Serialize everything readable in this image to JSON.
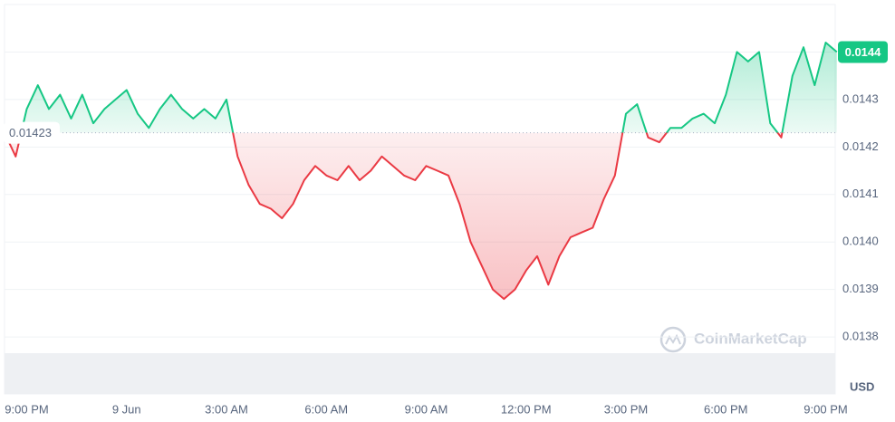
{
  "chart_data": {
    "type": "line",
    "categories": [
      null,
      null,
      "9:00 PM",
      null,
      null,
      null,
      null,
      null,
      null,
      null,
      null,
      "9 Jun",
      null,
      null,
      null,
      null,
      null,
      null,
      null,
      null,
      "3:00 AM",
      null,
      null,
      null,
      null,
      null,
      null,
      null,
      null,
      "6:00 AM",
      null,
      null,
      null,
      null,
      null,
      null,
      null,
      null,
      "9:00 AM",
      null,
      null,
      null,
      null,
      null,
      null,
      null,
      null,
      "12:00 PM",
      null,
      null,
      null,
      null,
      null,
      null,
      null,
      null,
      "3:00 PM",
      null,
      null,
      null,
      null,
      null,
      null,
      null,
      null,
      "6:00 PM",
      null,
      null,
      null,
      null,
      null,
      null,
      null,
      null,
      "9:00 PM",
      null
    ],
    "values": [
      0.01423,
      0.01418,
      0.01428,
      0.01433,
      0.01428,
      0.01431,
      0.01426,
      0.01431,
      0.01425,
      0.01428,
      0.0143,
      0.01432,
      0.01427,
      0.01424,
      0.01428,
      0.01431,
      0.01428,
      0.01426,
      0.01428,
      0.01426,
      0.0143,
      0.01418,
      0.01412,
      0.01408,
      0.01407,
      0.01405,
      0.01408,
      0.01413,
      0.01416,
      0.01414,
      0.01413,
      0.01416,
      0.01413,
      0.01415,
      0.01418,
      0.01416,
      0.01414,
      0.01413,
      0.01416,
      0.01415,
      0.01414,
      0.01408,
      0.014,
      0.01395,
      0.0139,
      0.01388,
      0.0139,
      0.01394,
      0.01397,
      0.01391,
      0.01397,
      0.01401,
      0.01402,
      0.01403,
      0.01409,
      0.01414,
      0.01427,
      0.01429,
      0.01422,
      0.01421,
      0.01424,
      0.01424,
      0.01426,
      0.01427,
      0.01425,
      0.01431,
      0.0144,
      0.01438,
      0.0144,
      0.01425,
      0.01422,
      0.01435,
      0.01441,
      0.01433,
      0.01442,
      0.0144
    ],
    "baseline": 0.01423,
    "current_price": 0.0144,
    "up_color": "#16c784",
    "down_color": "#ea3943",
    "ylim": [
      0.01368,
      0.0145
    ],
    "yticks": [
      0.0138,
      0.0139,
      {
        "value": 0.014,
        "label": "0.0140"
      },
      0.0141,
      0.0142,
      0.0143,
      0.0144
    ],
    "y_unit": "USD",
    "watermark": "CoinMarketCap",
    "grid": true
  }
}
